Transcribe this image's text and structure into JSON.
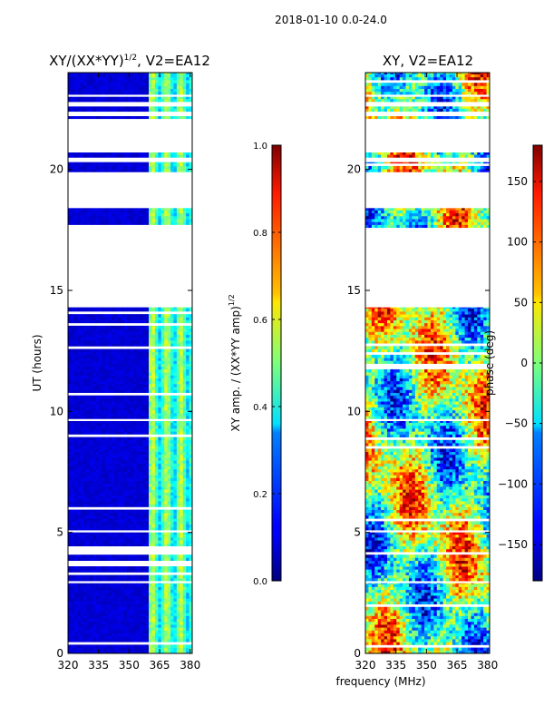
{
  "suptitle": "2018-01-10 0.0-24.0",
  "xlabel": "frequency (MHz)",
  "chart_data": [
    {
      "type": "heatmap",
      "title": "XY/(XX*YY)",
      "title_exponent": "1/2",
      "title_suffix": ", V2=EA12",
      "xlabel": "frequency (MHz)",
      "ylabel": "UT (hours)",
      "xlim": [
        320,
        381
      ],
      "ylim": [
        0,
        24
      ],
      "xticks": [
        320,
        335,
        350,
        365,
        380
      ],
      "yticks": [
        0,
        5,
        10,
        15,
        20
      ],
      "grid": false,
      "colormap": "jet",
      "colorbar": {
        "label": "XY amp. / (XX*YY amp)",
        "label_exponent": "1/2",
        "range": [
          0.0,
          1.0
        ],
        "ticks": [
          "0.0",
          "0.2",
          "0.4",
          "0.6",
          "0.8",
          "1.0"
        ]
      },
      "bright_band_mhz": [
        359,
        381
      ],
      "data_present_ut": [
        [
          0.0,
          2.9
        ],
        [
          3.0,
          5.0
        ],
        [
          5.1,
          9.6
        ],
        [
          9.7,
          14.3
        ],
        [
          17.6,
          18.4
        ],
        [
          19.9,
          20.3
        ],
        [
          20.5,
          20.7
        ],
        [
          22.1,
          22.2
        ],
        [
          22.4,
          22.6
        ],
        [
          22.8,
          23.0
        ],
        [
          23.1,
          24.0
        ]
      ]
    },
    {
      "type": "heatmap",
      "title": "XY, V2=EA12",
      "xlabel": "frequency (MHz)",
      "ylabel": "",
      "xlim": [
        320,
        381
      ],
      "ylim": [
        0,
        24
      ],
      "xticks": [
        320,
        335,
        350,
        365,
        380
      ],
      "yticks": [
        0,
        5,
        10,
        15,
        20
      ],
      "grid": false,
      "colormap": "jet",
      "colorbar": {
        "label": "phase (deg)",
        "range": [
          -180,
          180
        ],
        "ticks": [
          "-150",
          "-100",
          "-50",
          "0",
          "50",
          "100",
          "150"
        ]
      },
      "data_present_ut": [
        [
          0.0,
          2.9
        ],
        [
          3.0,
          5.0
        ],
        [
          5.1,
          9.6
        ],
        [
          9.7,
          14.3
        ],
        [
          17.6,
          18.4
        ],
        [
          19.9,
          20.3
        ],
        [
          20.5,
          20.7
        ],
        [
          22.1,
          22.2
        ],
        [
          22.4,
          22.6
        ],
        [
          22.8,
          23.0
        ],
        [
          23.1,
          24.0
        ]
      ]
    }
  ]
}
